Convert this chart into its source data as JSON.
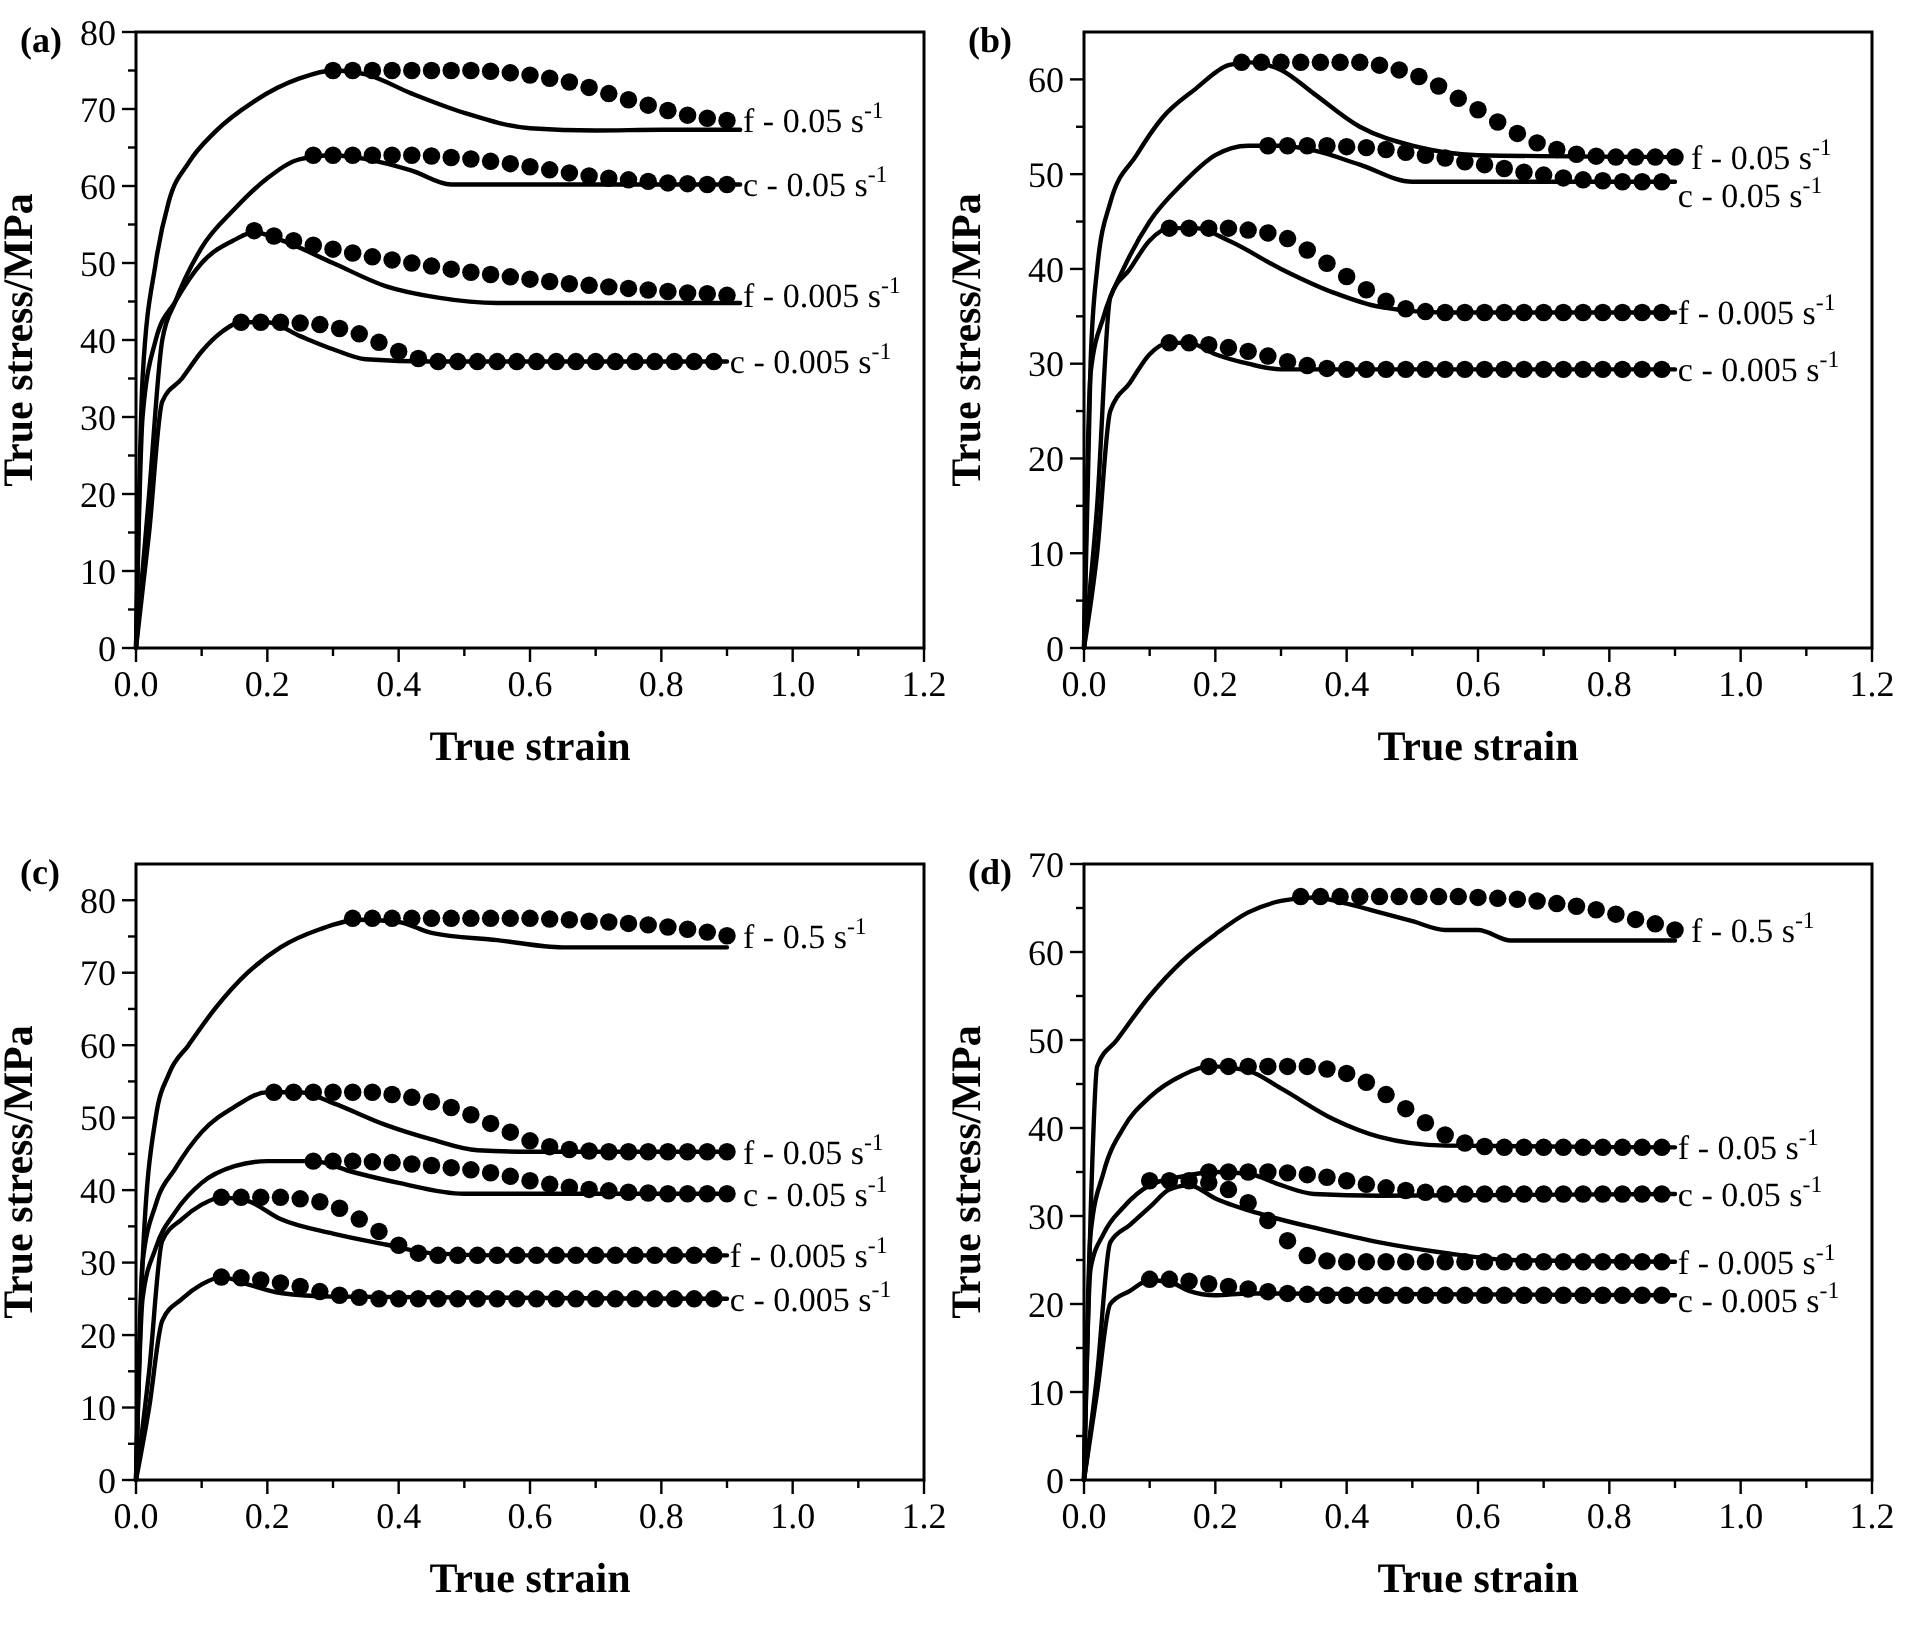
{
  "chart_data": [
    {
      "type": "line",
      "title": "(a)",
      "xlabel": "True strain",
      "ylabel": "True stress/MPa",
      "xlim": [
        0,
        1.2
      ],
      "ylim": [
        0,
        80
      ],
      "xticks": [
        {
          "value": 0,
          "label": "0.0"
        },
        {
          "value": 0.1,
          "label": null
        },
        0.2,
        {
          "value": 0.3,
          "label": null
        },
        0.4,
        {
          "value": 0.5,
          "label": null
        },
        0.6,
        {
          "value": 0.7,
          "label": null
        },
        0.8,
        {
          "value": 0.9,
          "label": null
        },
        {
          "value": 1,
          "label": "1.0"
        },
        {
          "value": 1.1,
          "label": null
        },
        1.2
      ],
      "yticks": [
        0,
        {
          "value": 5,
          "label": null
        },
        10,
        {
          "value": 15,
          "label": null
        },
        20,
        {
          "value": 25,
          "label": null
        },
        30,
        {
          "value": 35,
          "label": null
        },
        40,
        {
          "value": 45,
          "label": null
        },
        50,
        {
          "value": 55,
          "label": null
        },
        60,
        {
          "value": 65,
          "label": null
        },
        70,
        {
          "value": 75,
          "label": null
        },
        80
      ],
      "series": [
        {
          "color": "#000000",
          "x": [
            0,
            0.01,
            0.03,
            0.05,
            0.08,
            0.12,
            0.18,
            0.25,
            0.3,
            0.35,
            0.42,
            0.5,
            0.6,
            0.7,
            0.8,
            0.92
          ],
          "values": [
            0,
            35,
            50,
            58,
            63,
            67,
            71,
            74,
            75,
            74.5,
            72,
            69.5,
            67.5,
            67.2,
            67.3,
            67.3
          ]
        },
        {
          "type": "scatter",
          "name": "f - 0.05 s$^{-1}$",
          "marker": "circle",
          "color": "#000000",
          "x": [
            0.3,
            0.33,
            0.36,
            0.39,
            0.42,
            0.45,
            0.48,
            0.51,
            0.54,
            0.57,
            0.6,
            0.63,
            0.66,
            0.69,
            0.72,
            0.75,
            0.78,
            0.81,
            0.84,
            0.87,
            0.9
          ],
          "values": [
            75,
            75,
            75,
            75,
            75,
            75,
            75,
            75,
            74.9,
            74.7,
            74.4,
            74,
            73.5,
            72.8,
            72,
            71.2,
            70.5,
            69.8,
            69.2,
            68.8,
            68.5
          ]
        },
        {
          "color": "#000000",
          "x": [
            0,
            0.02,
            0.04,
            0.06,
            0.1,
            0.15,
            0.2,
            0.25,
            0.3,
            0.35,
            0.42,
            0.48,
            0.6,
            0.92
          ],
          "values": [
            0,
            20,
            40,
            45,
            52,
            57,
            61,
            63.5,
            64,
            63.5,
            62,
            60.2,
            60.2,
            60.2
          ]
        },
        {
          "type": "scatter",
          "name": "c - 0.05 s$^{-1}$",
          "marker": "circle",
          "color": "#000000",
          "x": [
            0.27,
            0.3,
            0.33,
            0.36,
            0.39,
            0.42,
            0.45,
            0.48,
            0.51,
            0.54,
            0.57,
            0.6,
            0.63,
            0.66,
            0.69,
            0.72,
            0.75,
            0.78,
            0.81,
            0.84,
            0.87,
            0.9
          ],
          "values": [
            64,
            64,
            64,
            64,
            64,
            64,
            63.9,
            63.7,
            63.5,
            63.2,
            62.9,
            62.5,
            62.1,
            61.7,
            61.3,
            61,
            60.8,
            60.6,
            60.4,
            60.3,
            60.2,
            60.2
          ]
        },
        {
          "color": "#000000",
          "x": [
            0,
            0.01,
            0.03,
            0.06,
            0.1,
            0.15,
            0.18,
            0.22,
            0.3,
            0.38,
            0.46,
            0.55,
            0.7,
            0.92
          ],
          "values": [
            0,
            30,
            40,
            45,
            50,
            53,
            54,
            53,
            50,
            47,
            45.5,
            44.8,
            44.8,
            44.8
          ]
        },
        {
          "type": "scatter",
          "name": "f - 0.005 s$^{-1}$",
          "marker": "circle",
          "color": "#000000",
          "x": [
            0.18,
            0.21,
            0.24,
            0.27,
            0.3,
            0.33,
            0.36,
            0.39,
            0.42,
            0.45,
            0.48,
            0.51,
            0.54,
            0.57,
            0.6,
            0.63,
            0.66,
            0.69,
            0.72,
            0.75,
            0.78,
            0.81,
            0.84,
            0.87,
            0.9
          ],
          "values": [
            54.2,
            53.5,
            52.9,
            52.3,
            51.8,
            51.3,
            50.8,
            50.4,
            50,
            49.6,
            49.2,
            48.8,
            48.5,
            48.2,
            47.9,
            47.6,
            47.3,
            47.1,
            46.9,
            46.7,
            46.5,
            46.3,
            46.1,
            46,
            45.8
          ]
        },
        {
          "color": "#000000",
          "x": [
            0,
            0.02,
            0.04,
            0.07,
            0.1,
            0.13,
            0.16,
            0.2,
            0.25,
            0.3,
            0.35,
            0.45,
            0.9
          ],
          "values": [
            0,
            15,
            32,
            35,
            38.5,
            41,
            42.3,
            42.3,
            40.5,
            38.8,
            37.5,
            37.2,
            37.2
          ]
        },
        {
          "type": "scatter",
          "name": "c - 0.005 s$^{-1}$",
          "marker": "circle",
          "color": "#000000",
          "x": [
            0.16,
            0.19,
            0.22,
            0.25,
            0.28,
            0.31,
            0.34,
            0.37,
            0.4,
            0.43,
            0.46,
            0.49,
            0.52,
            0.55,
            0.58,
            0.61,
            0.64,
            0.67,
            0.7,
            0.73,
            0.76,
            0.79,
            0.82,
            0.85,
            0.88
          ],
          "values": [
            42.3,
            42.3,
            42.3,
            42.2,
            42,
            41.5,
            40.8,
            39.7,
            38.5,
            37.6,
            37.2,
            37.2,
            37.2,
            37.2,
            37.2,
            37.2,
            37.2,
            37.2,
            37.2,
            37.2,
            37.2,
            37.2,
            37.2,
            37.2,
            37.2
          ]
        }
      ]
    },
    {
      "type": "line",
      "title": "(b)",
      "xlabel": "True strain",
      "ylabel": "True stress/MPa",
      "xlim": [
        0,
        1.2
      ],
      "ylim": [
        0,
        65
      ],
      "xticks": [
        {
          "value": 0,
          "label": "0.0"
        },
        {
          "value": 0.1,
          "label": null
        },
        0.2,
        {
          "value": 0.3,
          "label": null
        },
        0.4,
        {
          "value": 0.5,
          "label": null
        },
        0.6,
        {
          "value": 0.7,
          "label": null
        },
        0.8,
        {
          "value": 0.9,
          "label": null
        },
        {
          "value": 1,
          "label": "1.0"
        },
        {
          "value": 1.1,
          "label": null
        },
        1.2
      ],
      "yticks": [
        0,
        {
          "value": 5,
          "label": null
        },
        10,
        {
          "value": 15,
          "label": null
        },
        20,
        {
          "value": 25,
          "label": null
        },
        30,
        {
          "value": 35,
          "label": null
        },
        40,
        {
          "value": 45,
          "label": null
        },
        50,
        {
          "value": 55,
          "label": null
        },
        60
      ],
      "series": [
        {
          "color": "#000000",
          "x": [
            0,
            0.01,
            0.02,
            0.04,
            0.08,
            0.12,
            0.17,
            0.22,
            0.25,
            0.3,
            0.35,
            0.42,
            0.5,
            0.6,
            0.9
          ],
          "values": [
            0,
            30,
            40,
            47,
            52,
            56,
            59,
            61.5,
            61.8,
            61,
            58.5,
            55,
            53,
            52,
            51.8
          ]
        },
        {
          "type": "scatter",
          "name": "f - 0.05 s$^{-1}$",
          "marker": "circle",
          "color": "#000000",
          "x": [
            0.24,
            0.27,
            0.3,
            0.33,
            0.36,
            0.39,
            0.42,
            0.45,
            0.48,
            0.51,
            0.54,
            0.57,
            0.6,
            0.63,
            0.66,
            0.69,
            0.72,
            0.75,
            0.78,
            0.81,
            0.84,
            0.87,
            0.9
          ],
          "values": [
            61.8,
            61.8,
            61.8,
            61.8,
            61.8,
            61.8,
            61.8,
            61.5,
            61,
            60.3,
            59.3,
            58,
            56.8,
            55.5,
            54.3,
            53.3,
            52.6,
            52.1,
            51.9,
            51.8,
            51.8,
            51.8,
            51.8
          ]
        },
        {
          "color": "#000000",
          "x": [
            0,
            0.01,
            0.03,
            0.06,
            0.1,
            0.15,
            0.2,
            0.25,
            0.3,
            0.35,
            0.42,
            0.5,
            0.9
          ],
          "values": [
            0,
            29,
            35,
            40,
            45,
            49,
            52,
            53,
            53,
            52.5,
            51,
            49.2,
            49.2
          ]
        },
        {
          "type": "scatter",
          "name": "c - 0.05 s$^{-1}$",
          "marker": "circle",
          "color": "#000000",
          "x": [
            0.28,
            0.31,
            0.34,
            0.37,
            0.4,
            0.43,
            0.46,
            0.49,
            0.52,
            0.55,
            0.58,
            0.61,
            0.64,
            0.67,
            0.7,
            0.73,
            0.76,
            0.79,
            0.82,
            0.85,
            0.88
          ],
          "values": [
            53,
            53,
            53,
            53,
            52.9,
            52.8,
            52.6,
            52.3,
            52,
            51.7,
            51.3,
            51,
            50.6,
            50.2,
            49.9,
            49.6,
            49.4,
            49.3,
            49.2,
            49.2,
            49.2
          ]
        },
        {
          "color": "#000000",
          "x": [
            0,
            0.02,
            0.04,
            0.07,
            0.1,
            0.13,
            0.17,
            0.22,
            0.3,
            0.38,
            0.45,
            0.55,
            0.9
          ],
          "values": [
            0,
            15,
            37,
            40,
            43,
            44.3,
            44.3,
            43,
            40,
            37.5,
            36,
            35.4,
            35.4
          ]
        },
        {
          "type": "scatter",
          "name": "f - 0.005 s$^{-1}$",
          "marker": "circle",
          "color": "#000000",
          "x": [
            0.13,
            0.16,
            0.19,
            0.22,
            0.25,
            0.28,
            0.31,
            0.34,
            0.37,
            0.4,
            0.43,
            0.46,
            0.49,
            0.52,
            0.55,
            0.58,
            0.61,
            0.64,
            0.67,
            0.7,
            0.73,
            0.76,
            0.79,
            0.82,
            0.85,
            0.88
          ],
          "values": [
            44.3,
            44.3,
            44.3,
            44.3,
            44.1,
            43.8,
            43.2,
            42,
            40.6,
            39.2,
            37.8,
            36.6,
            35.8,
            35.5,
            35.4,
            35.4,
            35.4,
            35.4,
            35.4,
            35.4,
            35.4,
            35.4,
            35.4,
            35.4,
            35.4,
            35.4
          ]
        },
        {
          "color": "#000000",
          "x": [
            0,
            0.02,
            0.04,
            0.07,
            0.1,
            0.13,
            0.16,
            0.2,
            0.25,
            0.3,
            0.9
          ],
          "values": [
            0,
            10,
            25,
            28,
            31,
            32.2,
            32.2,
            31,
            30,
            29.4,
            29.4
          ]
        },
        {
          "type": "scatter",
          "name": "c - 0.005 s$^{-1}$",
          "marker": "circle",
          "color": "#000000",
          "x": [
            0.13,
            0.16,
            0.19,
            0.22,
            0.25,
            0.28,
            0.31,
            0.34,
            0.37,
            0.4,
            0.43,
            0.46,
            0.49,
            0.52,
            0.55,
            0.58,
            0.61,
            0.64,
            0.67,
            0.7,
            0.73,
            0.76,
            0.79,
            0.82,
            0.85,
            0.88
          ],
          "values": [
            32.2,
            32.2,
            32,
            31.7,
            31.3,
            30.8,
            30.2,
            29.8,
            29.5,
            29.4,
            29.4,
            29.4,
            29.4,
            29.4,
            29.4,
            29.4,
            29.4,
            29.4,
            29.4,
            29.4,
            29.4,
            29.4,
            29.4,
            29.4,
            29.4,
            29.4
          ]
        }
      ]
    },
    {
      "type": "line",
      "title": "(c)",
      "xlabel": "True strain",
      "ylabel": "True stress/MPa",
      "xlim": [
        0,
        1.2
      ],
      "ylim": [
        0,
        85
      ],
      "xticks": [
        {
          "value": 0,
          "label": "0.0"
        },
        {
          "value": 0.1,
          "label": null
        },
        0.2,
        {
          "value": 0.3,
          "label": null
        },
        0.4,
        {
          "value": 0.5,
          "label": null
        },
        0.6,
        {
          "value": 0.7,
          "label": null
        },
        0.8,
        {
          "value": 0.9,
          "label": null
        },
        {
          "value": 1,
          "label": "1.0"
        },
        {
          "value": 1.1,
          "label": null
        },
        1.2
      ],
      "yticks": [
        0,
        {
          "value": 5,
          "label": null
        },
        10,
        {
          "value": 15,
          "label": null
        },
        20,
        {
          "value": 25,
          "label": null
        },
        30,
        {
          "value": 35,
          "label": null
        },
        40,
        {
          "value": 45,
          "label": null
        },
        50,
        {
          "value": 55,
          "label": null
        },
        60,
        {
          "value": 65,
          "label": null
        },
        70,
        {
          "value": 75,
          "label": null
        },
        80
      ],
      "series": [
        {
          "color": "#000000",
          "x": [
            0,
            0.01,
            0.03,
            0.05,
            0.08,
            0.12,
            0.17,
            0.22,
            0.28,
            0.34,
            0.4,
            0.45,
            0.55,
            0.65,
            0.75,
            0.9
          ],
          "values": [
            0,
            30,
            50,
            56,
            60,
            65,
            70,
            73.5,
            76,
            77.3,
            77,
            75.5,
            74.5,
            73.5,
            73.5,
            73.5
          ]
        },
        {
          "type": "scatter",
          "name": "f - 0.5 s$^{-1}$",
          "marker": "circle",
          "color": "#000000",
          "x": [
            0.33,
            0.36,
            0.39,
            0.42,
            0.45,
            0.48,
            0.51,
            0.54,
            0.57,
            0.6,
            0.63,
            0.66,
            0.69,
            0.72,
            0.75,
            0.78,
            0.81,
            0.84,
            0.87,
            0.9
          ],
          "values": [
            77.5,
            77.5,
            77.5,
            77.5,
            77.5,
            77.5,
            77.5,
            77.5,
            77.5,
            77.5,
            77.4,
            77.3,
            77.1,
            77,
            76.8,
            76.6,
            76.3,
            76,
            75.6,
            75.1
          ]
        },
        {
          "color": "#000000",
          "x": [
            0,
            0.01,
            0.03,
            0.06,
            0.1,
            0.15,
            0.2,
            0.25,
            0.3,
            0.38,
            0.45,
            0.52,
            0.6,
            0.9
          ],
          "values": [
            0,
            30,
            38,
            43,
            48,
            51.5,
            53.5,
            53.5,
            52,
            49,
            47,
            45.5,
            45.3,
            45.3
          ]
        },
        {
          "type": "scatter",
          "name": "f - 0.05 s$^{-1}$",
          "marker": "circle",
          "color": "#000000",
          "x": [
            0.21,
            0.24,
            0.27,
            0.3,
            0.33,
            0.36,
            0.39,
            0.42,
            0.45,
            0.48,
            0.51,
            0.54,
            0.57,
            0.6,
            0.63,
            0.66,
            0.69,
            0.72,
            0.75,
            0.78,
            0.81,
            0.84,
            0.87,
            0.9
          ],
          "values": [
            53.5,
            53.5,
            53.5,
            53.5,
            53.5,
            53.5,
            53.2,
            52.8,
            52.2,
            51.4,
            50.4,
            49.2,
            48,
            46.8,
            46,
            45.6,
            45.4,
            45.3,
            45.3,
            45.3,
            45.3,
            45.3,
            45.3,
            45.3
          ]
        },
        {
          "color": "#000000",
          "x": [
            0,
            0.01,
            0.03,
            0.06,
            0.1,
            0.15,
            0.2,
            0.27,
            0.33,
            0.4,
            0.5,
            0.9
          ],
          "values": [
            0,
            25,
            32,
            37,
            41,
            43.3,
            44,
            44,
            42.5,
            41,
            39.5,
            39.5
          ]
        },
        {
          "type": "scatter",
          "name": "c - 0.05 s$^{-1}$",
          "marker": "circle",
          "color": "#000000",
          "x": [
            0.27,
            0.3,
            0.33,
            0.36,
            0.39,
            0.42,
            0.45,
            0.48,
            0.51,
            0.54,
            0.57,
            0.6,
            0.63,
            0.66,
            0.69,
            0.72,
            0.75,
            0.78,
            0.81,
            0.84,
            0.87,
            0.9
          ],
          "values": [
            44,
            44,
            44,
            43.9,
            43.8,
            43.6,
            43.4,
            43.1,
            42.8,
            42.4,
            41.9,
            41.3,
            40.8,
            40.4,
            40.1,
            39.9,
            39.7,
            39.6,
            39.5,
            39.5,
            39.5,
            39.5
          ]
        },
        {
          "color": "#000000",
          "x": [
            0,
            0.02,
            0.04,
            0.07,
            0.1,
            0.13,
            0.17,
            0.22,
            0.3,
            0.38,
            0.45,
            0.55,
            0.9
          ],
          "values": [
            0,
            15,
            33,
            36,
            38,
            39,
            38.5,
            36,
            34,
            32.5,
            31.3,
            31,
            31
          ]
        },
        {
          "type": "scatter",
          "name": "f - 0.005 s$^{-1}$",
          "marker": "circle",
          "color": "#000000",
          "x": [
            0.13,
            0.16,
            0.19,
            0.22,
            0.25,
            0.28,
            0.31,
            0.34,
            0.37,
            0.4,
            0.43,
            0.46,
            0.49,
            0.52,
            0.55,
            0.58,
            0.61,
            0.64,
            0.67,
            0.7,
            0.73,
            0.76,
            0.79,
            0.82,
            0.85,
            0.88
          ],
          "values": [
            39,
            39,
            39,
            39,
            38.8,
            38.4,
            37.5,
            36,
            34.3,
            32.4,
            31.3,
            31,
            31,
            31,
            31,
            31,
            31,
            31,
            31,
            31,
            31,
            31,
            31,
            31,
            31,
            31
          ]
        },
        {
          "color": "#000000",
          "x": [
            0,
            0.02,
            0.04,
            0.07,
            0.1,
            0.13,
            0.17,
            0.22,
            0.3,
            0.9
          ],
          "values": [
            0,
            10,
            22,
            25,
            27,
            28,
            27,
            25.8,
            25.3,
            25
          ]
        },
        {
          "type": "scatter",
          "name": "c - 0.005 s$^{-1}$",
          "marker": "circle",
          "color": "#000000",
          "x": [
            0.13,
            0.16,
            0.19,
            0.22,
            0.25,
            0.28,
            0.31,
            0.34,
            0.37,
            0.4,
            0.43,
            0.46,
            0.49,
            0.52,
            0.55,
            0.58,
            0.61,
            0.64,
            0.67,
            0.7,
            0.73,
            0.76,
            0.79,
            0.82,
            0.85,
            0.88
          ],
          "values": [
            28,
            27.9,
            27.6,
            27.2,
            26.7,
            26,
            25.5,
            25.2,
            25,
            25,
            25,
            25,
            25,
            25,
            25,
            25,
            25,
            25,
            25,
            25,
            25,
            25,
            25,
            25,
            25,
            25
          ]
        }
      ]
    },
    {
      "type": "line",
      "title": "(d)",
      "xlabel": "True strain",
      "ylabel": "True stress/MPa",
      "xlim": [
        0,
        1.2
      ],
      "ylim": [
        0,
        70
      ],
      "xticks": [
        {
          "value": 0,
          "label": "0.0"
        },
        {
          "value": 0.1,
          "label": null
        },
        0.2,
        {
          "value": 0.3,
          "label": null
        },
        0.4,
        {
          "value": 0.5,
          "label": null
        },
        0.6,
        {
          "value": 0.7,
          "label": null
        },
        0.8,
        {
          "value": 0.9,
          "label": null
        },
        {
          "value": 1,
          "label": "1.0"
        },
        {
          "value": 1.1,
          "label": null
        },
        1.2
      ],
      "yticks": [
        0,
        {
          "value": 5,
          "label": null
        },
        10,
        {
          "value": 15,
          "label": null
        },
        20,
        {
          "value": 25,
          "label": null
        },
        30,
        {
          "value": 35,
          "label": null
        },
        40,
        {
          "value": 45,
          "label": null
        },
        50,
        {
          "value": 55,
          "label": null
        },
        60,
        {
          "value": 65,
          "label": null
        },
        70
      ],
      "series": [
        {
          "color": "#000000",
          "x": [
            0,
            0.01,
            0.02,
            0.05,
            0.1,
            0.15,
            0.2,
            0.25,
            0.3,
            0.35,
            0.4,
            0.45,
            0.5,
            0.55,
            0.6,
            0.65,
            0.75,
            0.9
          ],
          "values": [
            0,
            30,
            47,
            50,
            55,
            59,
            62,
            64.5,
            65.8,
            66.2,
            65.5,
            64.5,
            63.5,
            62.5,
            62.5,
            61.3,
            61.3,
            61.3
          ]
        },
        {
          "type": "scatter",
          "name": "f - 0.5 s$^{-1}$",
          "marker": "circle",
          "color": "#000000",
          "x": [
            0.33,
            0.36,
            0.39,
            0.42,
            0.45,
            0.48,
            0.51,
            0.54,
            0.57,
            0.6,
            0.63,
            0.66,
            0.69,
            0.72,
            0.75,
            0.78,
            0.81,
            0.84,
            0.87,
            0.9
          ],
          "values": [
            66.3,
            66.3,
            66.3,
            66.3,
            66.3,
            66.3,
            66.3,
            66.3,
            66.3,
            66.2,
            66.1,
            66,
            65.8,
            65.5,
            65.2,
            64.8,
            64.3,
            63.7,
            63.2,
            62.5
          ]
        },
        {
          "color": "#000000",
          "x": [
            0,
            0.01,
            0.03,
            0.06,
            0.1,
            0.15,
            0.19,
            0.25,
            0.3,
            0.38,
            0.45,
            0.55,
            0.9
          ],
          "values": [
            0,
            28,
            35,
            40,
            43.5,
            46,
            47,
            46.5,
            44.5,
            41,
            39,
            38,
            37.8
          ]
        },
        {
          "type": "scatter",
          "name": "f - 0.05 s$^{-1}$",
          "marker": "circle",
          "color": "#000000",
          "x": [
            0.19,
            0.22,
            0.25,
            0.28,
            0.31,
            0.34,
            0.37,
            0.4,
            0.43,
            0.46,
            0.49,
            0.52,
            0.55,
            0.58,
            0.61,
            0.64,
            0.67,
            0.7,
            0.73,
            0.76,
            0.79,
            0.82,
            0.85,
            0.88
          ],
          "values": [
            47,
            47,
            47,
            47,
            47,
            47,
            46.7,
            46.2,
            45.2,
            43.8,
            42.2,
            40.6,
            39.2,
            38.3,
            37.9,
            37.8,
            37.8,
            37.8,
            37.8,
            37.8,
            37.8,
            37.8,
            37.8,
            37.8
          ]
        },
        {
          "color": "#000000",
          "x": [
            0,
            0.01,
            0.03,
            0.06,
            0.1,
            0.15,
            0.2,
            0.25,
            0.3,
            0.35,
            0.45,
            0.9
          ],
          "values": [
            0,
            24,
            28,
            31,
            33.5,
            34.5,
            35,
            34.8,
            33.5,
            32.5,
            32.3,
            32.5
          ]
        },
        {
          "type": "scatter",
          "name": "c - 0.05 s$^{-1}$",
          "marker": "circle",
          "color": "#000000",
          "x": [
            0.19,
            0.22,
            0.25,
            0.28,
            0.31,
            0.34,
            0.37,
            0.4,
            0.43,
            0.46,
            0.49,
            0.52,
            0.55,
            0.58,
            0.61,
            0.64,
            0.67,
            0.7,
            0.73,
            0.76,
            0.79,
            0.82,
            0.85,
            0.88
          ],
          "values": [
            35,
            35,
            35,
            35,
            34.9,
            34.7,
            34.4,
            34,
            33.6,
            33.2,
            32.9,
            32.7,
            32.5,
            32.5,
            32.5,
            32.5,
            32.5,
            32.5,
            32.5,
            32.5,
            32.5,
            32.5,
            32.5,
            32.5
          ]
        },
        {
          "color": "#000000",
          "x": [
            0,
            0.02,
            0.04,
            0.07,
            0.1,
            0.13,
            0.16,
            0.2,
            0.28,
            0.36,
            0.45,
            0.55,
            0.65,
            0.9
          ],
          "values": [
            0,
            12,
            27,
            29,
            31,
            33,
            33.5,
            32,
            30,
            28.5,
            27,
            25.8,
            25,
            24.8
          ]
        },
        {
          "type": "scatter",
          "name": "f - 0.005 s$^{-1}$",
          "marker": "circle",
          "color": "#000000",
          "x": [
            0.1,
            0.13,
            0.16,
            0.19,
            0.22,
            0.25,
            0.28,
            0.31,
            0.34,
            0.37,
            0.4,
            0.43,
            0.46,
            0.49,
            0.52,
            0.55,
            0.58,
            0.61,
            0.64,
            0.67,
            0.7,
            0.73,
            0.76,
            0.79,
            0.82,
            0.85,
            0.88
          ],
          "values": [
            34,
            34,
            34,
            33.8,
            33,
            31.5,
            29.5,
            27.2,
            25.5,
            24.9,
            24.8,
            24.8,
            24.8,
            24.8,
            24.8,
            24.8,
            24.8,
            24.8,
            24.8,
            24.8,
            24.8,
            24.8,
            24.8,
            24.8,
            24.8,
            24.8,
            24.8
          ]
        },
        {
          "color": "#000000",
          "x": [
            0,
            0.02,
            0.04,
            0.07,
            0.1,
            0.13,
            0.16,
            0.2,
            0.25,
            0.9
          ],
          "values": [
            0,
            10,
            20,
            21.5,
            22.7,
            22.5,
            21.5,
            21,
            21.2,
            21
          ]
        },
        {
          "type": "scatter",
          "name": "c - 0.005 s$^{-1}$",
          "marker": "circle",
          "color": "#000000",
          "x": [
            0.1,
            0.13,
            0.16,
            0.19,
            0.22,
            0.25,
            0.28,
            0.31,
            0.34,
            0.37,
            0.4,
            0.43,
            0.46,
            0.49,
            0.52,
            0.55,
            0.58,
            0.61,
            0.64,
            0.67,
            0.7,
            0.73,
            0.76,
            0.79,
            0.82,
            0.85,
            0.88
          ],
          "values": [
            22.8,
            22.8,
            22.6,
            22.3,
            22,
            21.7,
            21.4,
            21.2,
            21.1,
            21,
            21,
            21,
            21,
            21,
            21,
            21,
            21,
            21,
            21,
            21,
            21,
            21,
            21,
            21,
            21,
            21,
            21
          ]
        }
      ]
    }
  ]
}
